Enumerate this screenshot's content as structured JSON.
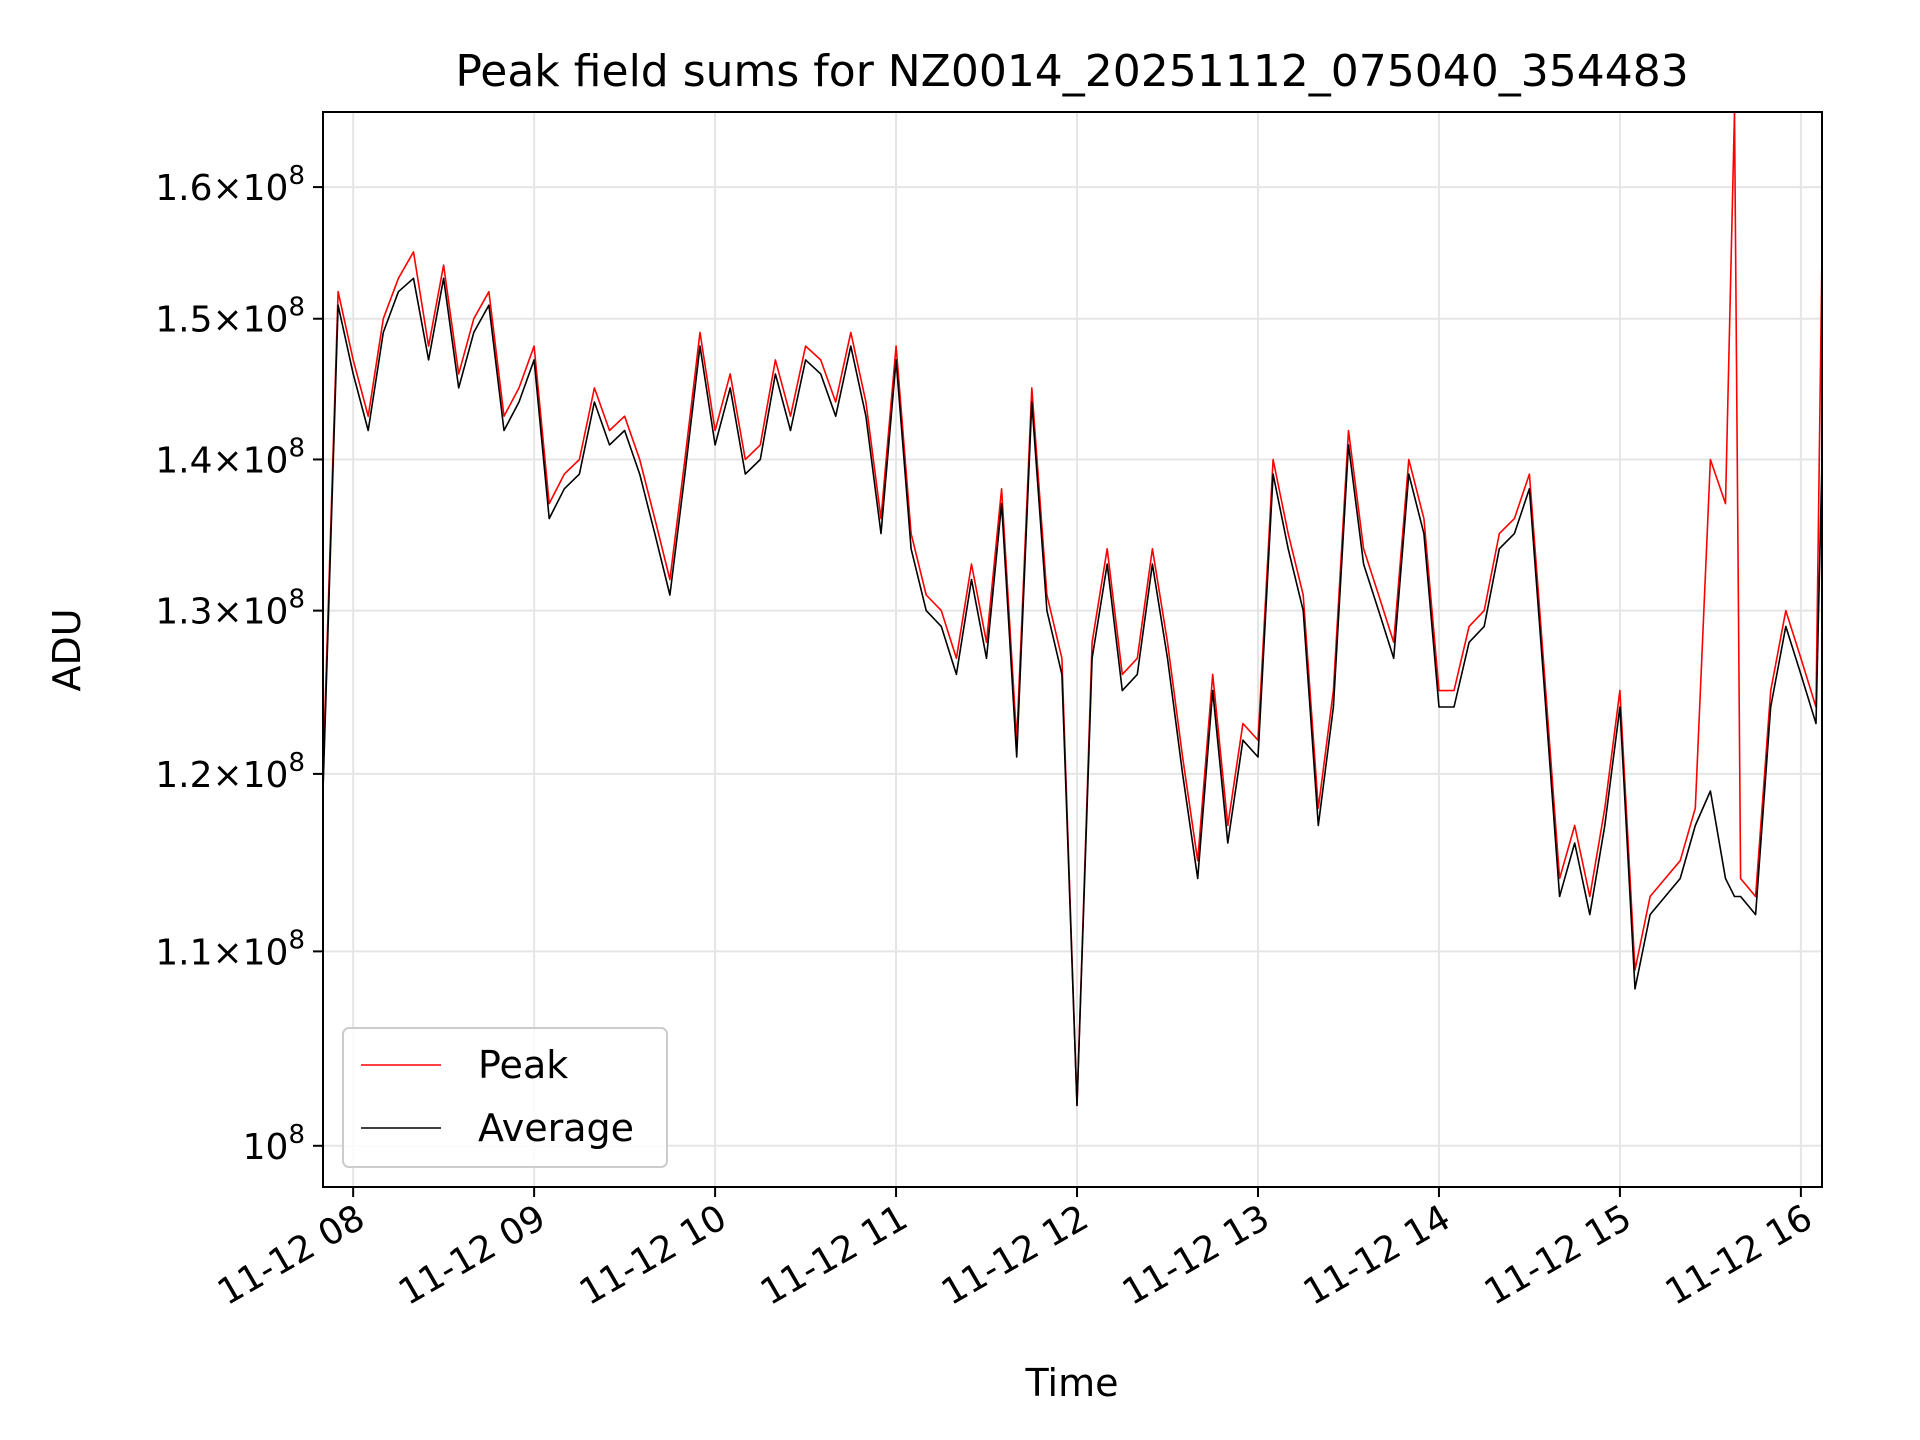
{
  "chart_data": {
    "type": "line",
    "title": "Peak field sums for NZ0014_20251112_075040_354483",
    "xlabel": "Time",
    "ylabel": "ADU",
    "yscale": "log",
    "xlim": [
      "2025-11-12 07:50",
      "2025-11-12 16:07"
    ],
    "ylim": [
      98000000,
      166000000
    ],
    "grid": true,
    "legend_position": "lower-left",
    "x_ticks": [
      {
        "value": "2025-11-12 08:00",
        "label": "11-12 08"
      },
      {
        "value": "2025-11-12 09:00",
        "label": "11-12 09"
      },
      {
        "value": "2025-11-12 10:00",
        "label": "11-12 10"
      },
      {
        "value": "2025-11-12 11:00",
        "label": "11-12 11"
      },
      {
        "value": "2025-11-12 12:00",
        "label": "11-12 12"
      },
      {
        "value": "2025-11-12 13:00",
        "label": "11-12 13"
      },
      {
        "value": "2025-11-12 14:00",
        "label": "11-12 14"
      },
      {
        "value": "2025-11-12 15:00",
        "label": "11-12 15"
      },
      {
        "value": "2025-11-12 16:00",
        "label": "11-12 16"
      }
    ],
    "y_ticks": [
      {
        "value": 100000000,
        "mantissa": "",
        "exponent": "8"
      },
      {
        "value": 110000000,
        "mantissa": "1.1",
        "exponent": "8"
      },
      {
        "value": 120000000,
        "mantissa": "1.2",
        "exponent": "8"
      },
      {
        "value": 130000000,
        "mantissa": "1.3",
        "exponent": "8"
      },
      {
        "value": 140000000,
        "mantissa": "1.4",
        "exponent": "8"
      },
      {
        "value": 150000000,
        "mantissa": "1.5",
        "exponent": "8"
      },
      {
        "value": 160000000,
        "mantissa": "1.6",
        "exponent": "8"
      }
    ],
    "series": [
      {
        "name": "Peak",
        "color": "#ff0000",
        "x": [
          "2025-11-12 07:50",
          "2025-11-12 07:55",
          "2025-11-12 08:00",
          "2025-11-12 08:05",
          "2025-11-12 08:10",
          "2025-11-12 08:15",
          "2025-11-12 08:20",
          "2025-11-12 08:25",
          "2025-11-12 08:30",
          "2025-11-12 08:35",
          "2025-11-12 08:40",
          "2025-11-12 08:45",
          "2025-11-12 08:50",
          "2025-11-12 08:55",
          "2025-11-12 09:00",
          "2025-11-12 09:05",
          "2025-11-12 09:10",
          "2025-11-12 09:15",
          "2025-11-12 09:20",
          "2025-11-12 09:25",
          "2025-11-12 09:30",
          "2025-11-12 09:35",
          "2025-11-12 09:40",
          "2025-11-12 09:45",
          "2025-11-12 09:50",
          "2025-11-12 09:55",
          "2025-11-12 10:00",
          "2025-11-12 10:05",
          "2025-11-12 10:10",
          "2025-11-12 10:15",
          "2025-11-12 10:20",
          "2025-11-12 10:25",
          "2025-11-12 10:30",
          "2025-11-12 10:35",
          "2025-11-12 10:40",
          "2025-11-12 10:45",
          "2025-11-12 10:50",
          "2025-11-12 10:55",
          "2025-11-12 11:00",
          "2025-11-12 11:05",
          "2025-11-12 11:10",
          "2025-11-12 11:15",
          "2025-11-12 11:20",
          "2025-11-12 11:25",
          "2025-11-12 11:30",
          "2025-11-12 11:35",
          "2025-11-12 11:40",
          "2025-11-12 11:45",
          "2025-11-12 11:50",
          "2025-11-12 11:55",
          "2025-11-12 12:00",
          "2025-11-12 12:05",
          "2025-11-12 12:10",
          "2025-11-12 12:15",
          "2025-11-12 12:20",
          "2025-11-12 12:25",
          "2025-11-12 12:30",
          "2025-11-12 12:35",
          "2025-11-12 12:40",
          "2025-11-12 12:45",
          "2025-11-12 12:50",
          "2025-11-12 12:55",
          "2025-11-12 13:00",
          "2025-11-12 13:05",
          "2025-11-12 13:10",
          "2025-11-12 13:15",
          "2025-11-12 13:20",
          "2025-11-12 13:25",
          "2025-11-12 13:30",
          "2025-11-12 13:35",
          "2025-11-12 13:40",
          "2025-11-12 13:45",
          "2025-11-12 13:50",
          "2025-11-12 13:55",
          "2025-11-12 14:00",
          "2025-11-12 14:05",
          "2025-11-12 14:10",
          "2025-11-12 14:15",
          "2025-11-12 14:20",
          "2025-11-12 14:25",
          "2025-11-12 14:30",
          "2025-11-12 14:35",
          "2025-11-12 14:40",
          "2025-11-12 14:45",
          "2025-11-12 14:50",
          "2025-11-12 14:55",
          "2025-11-12 15:00",
          "2025-11-12 15:05",
          "2025-11-12 15:10",
          "2025-11-12 15:15",
          "2025-11-12 15:20",
          "2025-11-12 15:25",
          "2025-11-12 15:30",
          "2025-11-12 15:35",
          "2025-11-12 15:38",
          "2025-11-12 15:40",
          "2025-11-12 15:45",
          "2025-11-12 15:50",
          "2025-11-12 15:55",
          "2025-11-12 16:00",
          "2025-11-12 16:05",
          "2025-11-12 16:07"
        ],
        "y": [
          120000000,
          152000000,
          147000000,
          143000000,
          150000000,
          153000000,
          155000000,
          148000000,
          154000000,
          146000000,
          150000000,
          152000000,
          143000000,
          145000000,
          148000000,
          137000000,
          139000000,
          140000000,
          145000000,
          142000000,
          143000000,
          140000000,
          136000000,
          132000000,
          140000000,
          149000000,
          142000000,
          146000000,
          140000000,
          141000000,
          147000000,
          143000000,
          148000000,
          147000000,
          144000000,
          149000000,
          144000000,
          136000000,
          148000000,
          135000000,
          131000000,
          130000000,
          127000000,
          133000000,
          128000000,
          138000000,
          122000000,
          145000000,
          131000000,
          127000000,
          102000000,
          128000000,
          134000000,
          126000000,
          127000000,
          134000000,
          128000000,
          121000000,
          115000000,
          126000000,
          117000000,
          123000000,
          122000000,
          140000000,
          135000000,
          131000000,
          118000000,
          125000000,
          142000000,
          134000000,
          131000000,
          128000000,
          140000000,
          136000000,
          125000000,
          125000000,
          129000000,
          130000000,
          135000000,
          136000000,
          139000000,
          126000000,
          114000000,
          117000000,
          113000000,
          118000000,
          125000000,
          109000000,
          113000000,
          114000000,
          115000000,
          118000000,
          140000000,
          137000000,
          166000000,
          114000000,
          113000000,
          125000000,
          130000000,
          127000000,
          124000000,
          155000000
        ]
      },
      {
        "name": "Average",
        "color": "#000000",
        "x": [
          "2025-11-12 07:50",
          "2025-11-12 07:55",
          "2025-11-12 08:00",
          "2025-11-12 08:05",
          "2025-11-12 08:10",
          "2025-11-12 08:15",
          "2025-11-12 08:20",
          "2025-11-12 08:25",
          "2025-11-12 08:30",
          "2025-11-12 08:35",
          "2025-11-12 08:40",
          "2025-11-12 08:45",
          "2025-11-12 08:50",
          "2025-11-12 08:55",
          "2025-11-12 09:00",
          "2025-11-12 09:05",
          "2025-11-12 09:10",
          "2025-11-12 09:15",
          "2025-11-12 09:20",
          "2025-11-12 09:25",
          "2025-11-12 09:30",
          "2025-11-12 09:35",
          "2025-11-12 09:40",
          "2025-11-12 09:45",
          "2025-11-12 09:50",
          "2025-11-12 09:55",
          "2025-11-12 10:00",
          "2025-11-12 10:05",
          "2025-11-12 10:10",
          "2025-11-12 10:15",
          "2025-11-12 10:20",
          "2025-11-12 10:25",
          "2025-11-12 10:30",
          "2025-11-12 10:35",
          "2025-11-12 10:40",
          "2025-11-12 10:45",
          "2025-11-12 10:50",
          "2025-11-12 10:55",
          "2025-11-12 11:00",
          "2025-11-12 11:05",
          "2025-11-12 11:10",
          "2025-11-12 11:15",
          "2025-11-12 11:20",
          "2025-11-12 11:25",
          "2025-11-12 11:30",
          "2025-11-12 11:35",
          "2025-11-12 11:40",
          "2025-11-12 11:45",
          "2025-11-12 11:50",
          "2025-11-12 11:55",
          "2025-11-12 12:00",
          "2025-11-12 12:05",
          "2025-11-12 12:10",
          "2025-11-12 12:15",
          "2025-11-12 12:20",
          "2025-11-12 12:25",
          "2025-11-12 12:30",
          "2025-11-12 12:35",
          "2025-11-12 12:40",
          "2025-11-12 12:45",
          "2025-11-12 12:50",
          "2025-11-12 12:55",
          "2025-11-12 13:00",
          "2025-11-12 13:05",
          "2025-11-12 13:10",
          "2025-11-12 13:15",
          "2025-11-12 13:20",
          "2025-11-12 13:25",
          "2025-11-12 13:30",
          "2025-11-12 13:35",
          "2025-11-12 13:40",
          "2025-11-12 13:45",
          "2025-11-12 13:50",
          "2025-11-12 13:55",
          "2025-11-12 14:00",
          "2025-11-12 14:05",
          "2025-11-12 14:10",
          "2025-11-12 14:15",
          "2025-11-12 14:20",
          "2025-11-12 14:25",
          "2025-11-12 14:30",
          "2025-11-12 14:35",
          "2025-11-12 14:40",
          "2025-11-12 14:45",
          "2025-11-12 14:50",
          "2025-11-12 14:55",
          "2025-11-12 15:00",
          "2025-11-12 15:05",
          "2025-11-12 15:10",
          "2025-11-12 15:15",
          "2025-11-12 15:20",
          "2025-11-12 15:25",
          "2025-11-12 15:30",
          "2025-11-12 15:35",
          "2025-11-12 15:38",
          "2025-11-12 15:40",
          "2025-11-12 15:45",
          "2025-11-12 15:50",
          "2025-11-12 15:55",
          "2025-11-12 16:00",
          "2025-11-12 16:05",
          "2025-11-12 16:07"
        ],
        "y": [
          119000000,
          151000000,
          146000000,
          142000000,
          149000000,
          152000000,
          153000000,
          147000000,
          153000000,
          145000000,
          149000000,
          151000000,
          142000000,
          144000000,
          147000000,
          136000000,
          138000000,
          139000000,
          144000000,
          141000000,
          142000000,
          139000000,
          135000000,
          131000000,
          139000000,
          148000000,
          141000000,
          145000000,
          139000000,
          140000000,
          146000000,
          142000000,
          147000000,
          146000000,
          143000000,
          148000000,
          143000000,
          135000000,
          147000000,
          134000000,
          130000000,
          129000000,
          126000000,
          132000000,
          127000000,
          137000000,
          121000000,
          144000000,
          130000000,
          126000000,
          102000000,
          127000000,
          133000000,
          125000000,
          126000000,
          133000000,
          127000000,
          120000000,
          114000000,
          125000000,
          116000000,
          122000000,
          121000000,
          139000000,
          134000000,
          130000000,
          117000000,
          124000000,
          141000000,
          133000000,
          130000000,
          127000000,
          139000000,
          135000000,
          124000000,
          124000000,
          128000000,
          129000000,
          134000000,
          135000000,
          138000000,
          125000000,
          113000000,
          116000000,
          112000000,
          117000000,
          124000000,
          108000000,
          112000000,
          113000000,
          114000000,
          117000000,
          119000000,
          114000000,
          113000000,
          113000000,
          112000000,
          124000000,
          129000000,
          126000000,
          123000000,
          140000000
        ]
      }
    ]
  }
}
